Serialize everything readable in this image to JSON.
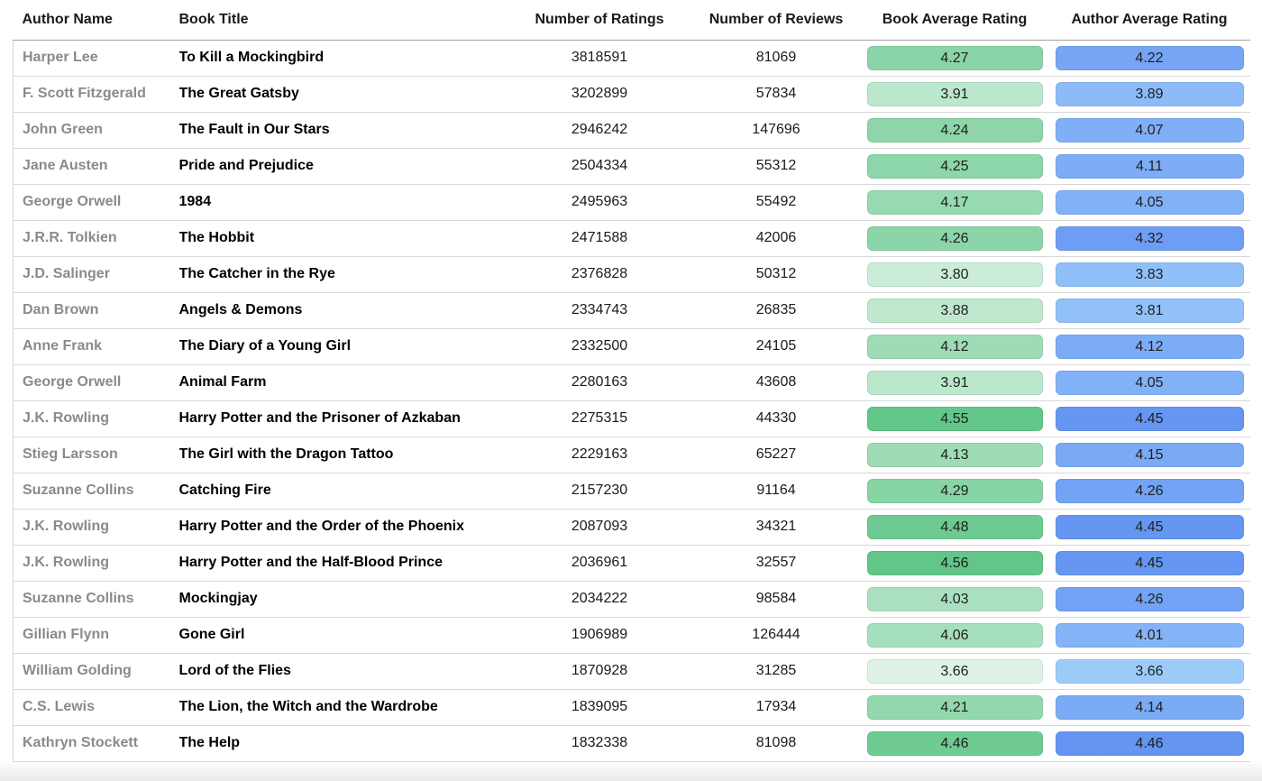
{
  "chart_data": {
    "type": "table",
    "columns": [
      "Author Name",
      "Book Title",
      "Number of Ratings",
      "Number of Reviews",
      "Book Average Rating",
      "Author Average Rating"
    ],
    "rows": [
      [
        "Harper Lee",
        "To Kill a Mockingbird",
        "3818591",
        "81069",
        "4.27",
        "4.22"
      ],
      [
        "F. Scott Fitzgerald",
        "The Great Gatsby",
        "3202899",
        "57834",
        "3.91",
        "3.89"
      ],
      [
        "John Green",
        "The Fault in Our Stars",
        "2946242",
        "147696",
        "4.24",
        "4.07"
      ],
      [
        "Jane Austen",
        "Pride and Prejudice",
        "2504334",
        "55312",
        "4.25",
        "4.11"
      ],
      [
        "George Orwell",
        "1984",
        "2495963",
        "55492",
        "4.17",
        "4.05"
      ],
      [
        "J.R.R. Tolkien",
        "The Hobbit",
        "2471588",
        "42006",
        "4.26",
        "4.32"
      ],
      [
        "J.D. Salinger",
        "The Catcher in the Rye",
        "2376828",
        "50312",
        "3.80",
        "3.83"
      ],
      [
        "Dan Brown",
        "Angels & Demons",
        "2334743",
        "26835",
        "3.88",
        "3.81"
      ],
      [
        "Anne Frank",
        "The Diary of a Young Girl",
        "2332500",
        "24105",
        "4.12",
        "4.12"
      ],
      [
        "George Orwell",
        "Animal Farm",
        "2280163",
        "43608",
        "3.91",
        "4.05"
      ],
      [
        "J.K. Rowling",
        "Harry Potter and the Prisoner of Azkaban",
        "2275315",
        "44330",
        "4.55",
        "4.45"
      ],
      [
        "Stieg Larsson",
        "The Girl with the Dragon Tattoo",
        "2229163",
        "65227",
        "4.13",
        "4.15"
      ],
      [
        "Suzanne Collins",
        "Catching Fire",
        "2157230",
        "91164",
        "4.29",
        "4.26"
      ],
      [
        "J.K. Rowling",
        "Harry Potter and the Order of the Phoenix",
        "2087093",
        "34321",
        "4.48",
        "4.45"
      ],
      [
        "J.K. Rowling",
        "Harry Potter and the Half-Blood Prince",
        "2036961",
        "32557",
        "4.56",
        "4.45"
      ],
      [
        "Suzanne Collins",
        "Mockingjay",
        "2034222",
        "98584",
        "4.03",
        "4.26"
      ],
      [
        "Gillian Flynn",
        "Gone Girl",
        "1906989",
        "126444",
        "4.06",
        "4.01"
      ],
      [
        "William Golding",
        "Lord of the Flies",
        "1870928",
        "31285",
        "3.66",
        "3.66"
      ],
      [
        "C.S. Lewis",
        "The Lion, the Witch and the Wardrobe",
        "1839095",
        "17934",
        "4.21",
        "4.14"
      ],
      [
        "Kathryn Stockett",
        "The Help",
        "1832338",
        "81098",
        "4.46",
        "4.46"
      ]
    ],
    "conditional_formatting": {
      "book_average_rating": {
        "min": 3.66,
        "max": 4.56,
        "min_color": "#ddf3e6",
        "max_color": "#62c689"
      },
      "author_average_rating": {
        "min": 3.66,
        "max": 4.46,
        "min_color": "#9ccbfa",
        "max_color": "#6495f2"
      }
    }
  }
}
